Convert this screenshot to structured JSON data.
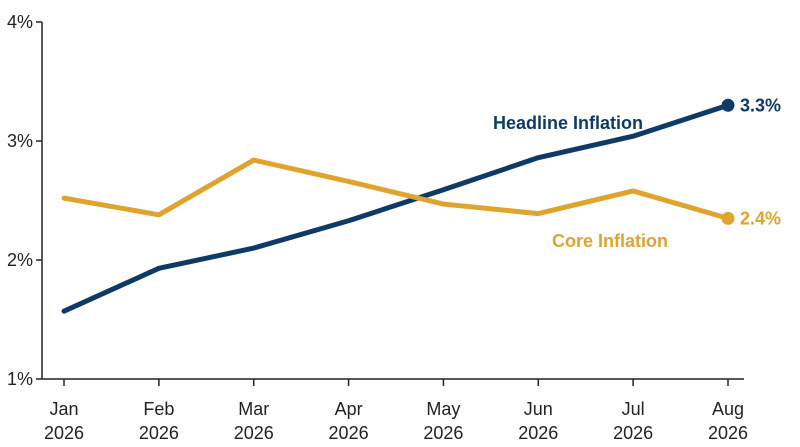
{
  "chart_data": {
    "type": "line",
    "categories": [
      "Jan 2026",
      "Feb 2026",
      "Mar 2026",
      "Apr 2026",
      "May 2026",
      "Jun 2026",
      "Jul 2026",
      "Aug 2026"
    ],
    "x_ticks": [
      {
        "month": "Jan",
        "year": "2026"
      },
      {
        "month": "Feb",
        "year": "2026"
      },
      {
        "month": "Mar",
        "year": "2026"
      },
      {
        "month": "Apr",
        "year": "2026"
      },
      {
        "month": "May",
        "year": "2026"
      },
      {
        "month": "Jun",
        "year": "2026"
      },
      {
        "month": "Jul",
        "year": "2026"
      },
      {
        "month": "Aug",
        "year": "2026"
      }
    ],
    "y_ticks": [
      1,
      2,
      3,
      4
    ],
    "y_tick_labels": [
      "1%",
      "2%",
      "3%",
      "4%"
    ],
    "ylim": [
      1,
      4
    ],
    "grid": false,
    "legend": "inline labels",
    "series": [
      {
        "name": "Headline Inflation",
        "color": "#0d3b66",
        "values": [
          1.57,
          1.93,
          2.1,
          2.33,
          2.59,
          2.86,
          3.04,
          3.3
        ],
        "end_label": "3.3%"
      },
      {
        "name": "Core Inflation",
        "color": "#e0a32e",
        "values": [
          2.52,
          2.38,
          2.84,
          2.66,
          2.47,
          2.39,
          2.58,
          2.35
        ],
        "end_label": "2.4%"
      }
    ]
  }
}
